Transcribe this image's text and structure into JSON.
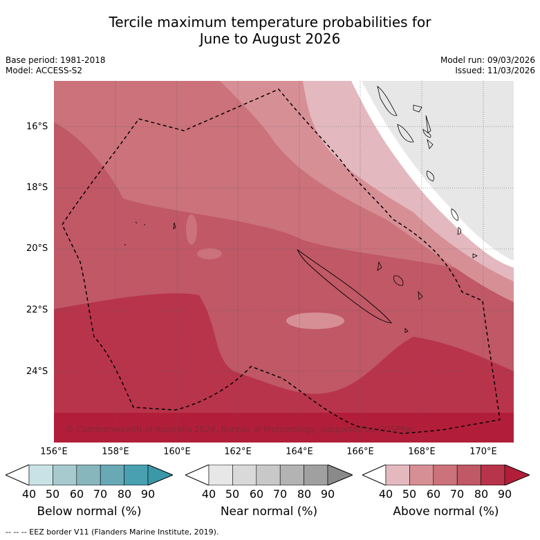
{
  "title": {
    "line1": "Tercile maximum temperature probabilities for",
    "line2": "June to August 2026"
  },
  "info": {
    "base_period": "Base period: 1981-2018",
    "model": "Model: ACCESS-S2",
    "model_run": "Model run: 09/03/2026",
    "issued": "Issued: 11/03/2026"
  },
  "axes": {
    "lat_labels": [
      "16°S",
      "18°S",
      "20°S",
      "22°S",
      "24°S"
    ],
    "lon_labels": [
      "156°E",
      "158°E",
      "160°E",
      "162°E",
      "164°E",
      "166°E",
      "168°E",
      "170°E"
    ]
  },
  "copyright": "© Commonwealth of Australia 2026, Bureau of Meteorology, supported by COSPPac",
  "legends": [
    {
      "title": "Below normal (%)",
      "ticks": [
        "40",
        "50",
        "60",
        "70",
        "80",
        "90"
      ],
      "colors": [
        "#ffffff",
        "#c9e2e6",
        "#a7cacf",
        "#88b6bd",
        "#68a9b5",
        "#49a0b0",
        "#3b98a8"
      ]
    },
    {
      "title": "Near normal (%)",
      "ticks": [
        "40",
        "50",
        "60",
        "70",
        "80",
        "90"
      ],
      "colors": [
        "#ffffff",
        "#e7e7e7",
        "#d9d9d9",
        "#c8c8c8",
        "#b3b3b3",
        "#a0a0a0",
        "#8a8a8a"
      ]
    },
    {
      "title": "Above normal (%)",
      "ticks": [
        "40",
        "50",
        "60",
        "70",
        "80",
        "90"
      ],
      "colors": [
        "#ffffff",
        "#e3b9bf",
        "#d78f96",
        "#cb727a",
        "#c05866",
        "#b8344b",
        "#b21e3a"
      ]
    }
  ],
  "footer": "--  --  -- EEZ border V11 (Flanders Marine Institute, 2019)."
}
